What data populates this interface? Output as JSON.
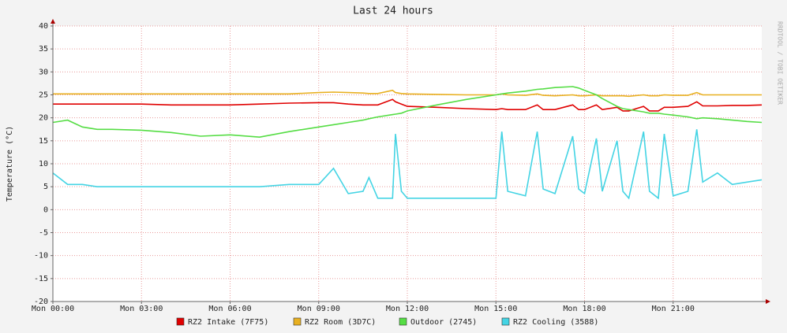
{
  "chart_data": {
    "type": "line",
    "title": "Last 24 hours",
    "y_label": "Temperature (°C)",
    "watermark": "RRDTOOL / TOBI OETIKER",
    "x": [
      0,
      0.5,
      1,
      1.5,
      2,
      3,
      4,
      5,
      6,
      7,
      8,
      9,
      9.5,
      10,
      10.5,
      10.7,
      11,
      11.5,
      11.6,
      11.8,
      12,
      13,
      14,
      15,
      15.2,
      15.4,
      16,
      16.4,
      16.6,
      17,
      17.6,
      17.8,
      18,
      18.4,
      18.6,
      19.1,
      19.3,
      19.5,
      20,
      20.2,
      20.5,
      20.7,
      21,
      21.5,
      21.8,
      22,
      22.5,
      23,
      23.5,
      24
    ],
    "series": [
      {
        "name": "RZ2 Intake (7F75)",
        "color": "#e00000",
        "values": [
          23,
          23,
          23,
          23,
          23,
          23,
          22.8,
          22.8,
          22.8,
          23,
          23.2,
          23.3,
          23.3,
          23,
          22.8,
          22.8,
          22.8,
          24,
          23.5,
          23,
          22.5,
          22.3,
          22,
          21.8,
          22,
          21.8,
          21.8,
          22.8,
          21.8,
          21.8,
          22.8,
          21.8,
          21.8,
          22.8,
          21.8,
          22.3,
          21.5,
          21.5,
          22.5,
          21.5,
          21.5,
          22.3,
          22.3,
          22.5,
          23.5,
          22.6,
          22.6,
          22.7,
          22.7,
          22.8
        ]
      },
      {
        "name": "RZ2 Room (3D7C)",
        "color": "#e8b020",
        "values": [
          25.2,
          25.2,
          25.2,
          25.2,
          25.2,
          25.2,
          25.2,
          25.2,
          25.2,
          25.2,
          25.2,
          25.5,
          25.6,
          25.5,
          25.4,
          25.3,
          25.3,
          26,
          25.5,
          25.3,
          25.2,
          25.1,
          25,
          25,
          25.2,
          25,
          24.9,
          25.2,
          24.9,
          24.8,
          25,
          24.8,
          24.8,
          25,
          24.8,
          24.8,
          24.8,
          24.7,
          25,
          24.8,
          24.8,
          25,
          24.9,
          24.9,
          25.5,
          25,
          25,
          25,
          25,
          25
        ]
      },
      {
        "name": "Outdoor (2745)",
        "color": "#55dd44",
        "values": [
          19,
          19.5,
          18,
          17.5,
          17.5,
          17.3,
          16.8,
          16,
          16.3,
          15.8,
          17,
          18,
          18.5,
          19,
          19.5,
          19.8,
          20.2,
          20.7,
          20.8,
          21,
          21.5,
          22.8,
          24,
          25,
          25.2,
          25.4,
          25.8,
          26.2,
          26.3,
          26.6,
          26.8,
          26.5,
          26,
          25,
          24.2,
          22.5,
          22,
          21.8,
          21.3,
          21,
          21,
          20.8,
          20.6,
          20.2,
          19.8,
          20,
          19.8,
          19.5,
          19.2,
          19
        ]
      },
      {
        "name": "RZ2 Cooling (3588)",
        "color": "#44d4e4",
        "values": [
          8,
          5.5,
          5.5,
          5,
          5,
          5,
          5,
          5,
          5,
          5,
          5.5,
          5.5,
          9,
          3.5,
          4,
          7,
          2.5,
          2.5,
          16.5,
          4,
          2.5,
          2.5,
          2.5,
          2.5,
          17,
          4,
          3,
          17,
          4.5,
          3.5,
          16,
          4.5,
          3.5,
          15.5,
          4,
          15,
          4,
          2.5,
          17,
          4,
          2.5,
          16.5,
          3,
          4,
          17.5,
          6,
          8,
          5.5,
          6,
          6.5
        ]
      }
    ],
    "xlim": [
      0,
      24
    ],
    "xticks": [
      {
        "value": 0,
        "label": "Mon 00:00"
      },
      {
        "value": 3,
        "label": "Mon 03:00"
      },
      {
        "value": 6,
        "label": "Mon 06:00"
      },
      {
        "value": 9,
        "label": "Mon 09:00"
      },
      {
        "value": 12,
        "label": "Mon 12:00"
      },
      {
        "value": 15,
        "label": "Mon 15:00"
      },
      {
        "value": 18,
        "label": "Mon 18:00"
      },
      {
        "value": 21,
        "label": "Mon 21:00"
      }
    ],
    "ylim": [
      -20,
      40
    ],
    "yticks": [
      -20,
      -15,
      -10,
      -5,
      0,
      5,
      10,
      15,
      20,
      25,
      30,
      35,
      40
    ],
    "grid": true
  }
}
